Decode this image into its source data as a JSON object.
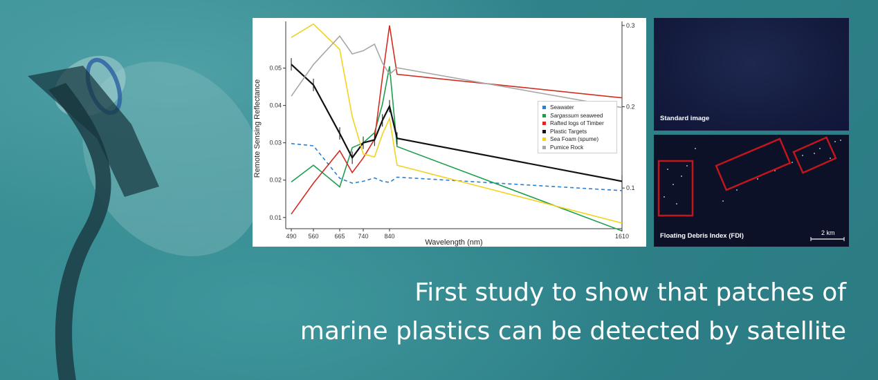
{
  "caption": {
    "line1": "First study to show that patches of",
    "line2": "marine plastics can be detected by satellite"
  },
  "satellite": {
    "top_label": "Standard image",
    "bottom_label": "Floating Debris Index (FDI)",
    "scale_label": "2 km",
    "box_color": "#c0161c"
  },
  "chart_data": {
    "type": "line",
    "xlabel": "Wavelength (nm)",
    "ylabel": "Remote Sensing Reflectance",
    "x_ticks": [
      490,
      560,
      665,
      740,
      840,
      1610
    ],
    "y_left_ticks": [
      0.01,
      0.02,
      0.03,
      0.04,
      0.05
    ],
    "y_left_tick_labels": [
      "0.01",
      "0.02",
      "0.03",
      "0.04",
      "0.05"
    ],
    "y_right_ticks": [
      0.1,
      0.2,
      0.3
    ],
    "y_right_tick_labels": [
      "0.1",
      "0.2",
      "0.3"
    ],
    "ylim_left": [
      0.007,
      0.0625
    ],
    "ylim_right": [
      0.05,
      0.305
    ],
    "legend_position": "middle-right",
    "series": [
      {
        "name": "Seawater",
        "color": "#2b7fd0",
        "dashed": true,
        "axis": "left",
        "x": [
          490,
          560,
          665,
          705,
          740,
          783,
          813,
          840,
          865,
          1610
        ],
        "y": [
          0.0298,
          0.0292,
          0.0205,
          0.0192,
          0.0197,
          0.0206,
          0.0197,
          0.0194,
          0.0208,
          0.0172
        ]
      },
      {
        "name": "Sargassum seaweed",
        "name_prefix": "",
        "name_italic": "Sargassum",
        "name_suffix": " seaweed",
        "color": "#1a9e4c",
        "dashed": false,
        "axis": "left",
        "x": [
          490,
          560,
          665,
          705,
          740,
          783,
          813,
          840,
          865,
          1610
        ],
        "y": [
          0.0195,
          0.024,
          0.0182,
          0.0287,
          0.03,
          0.0327,
          0.0403,
          0.0505,
          0.029,
          0.0064
        ]
      },
      {
        "name": "Rafted logs of Timber",
        "color": "#d42a20",
        "dashed": false,
        "axis": "right",
        "x": [
          490,
          560,
          665,
          705,
          740,
          783,
          813,
          840,
          865,
          1610
        ],
        "y": [
          0.068,
          0.106,
          0.146,
          0.119,
          0.137,
          0.16,
          0.236,
          0.3,
          0.24,
          0.211
        ]
      },
      {
        "name": "Plastic Targets",
        "color": "#111111",
        "dashed": false,
        "axis": "left",
        "x": [
          490,
          560,
          665,
          705,
          740,
          783,
          813,
          840,
          865,
          1610
        ],
        "y": [
          0.051,
          0.0455,
          0.0325,
          0.026,
          0.03,
          0.0308,
          0.036,
          0.0398,
          0.0312,
          0.0197
        ]
      },
      {
        "name": "Sea Foam (spume)",
        "color": "#f2d21b",
        "dashed": false,
        "axis": "left",
        "x": [
          490,
          560,
          665,
          705,
          740,
          783,
          813,
          840,
          865,
          1610
        ],
        "y": [
          0.0582,
          0.0618,
          0.055,
          0.037,
          0.027,
          0.0262,
          0.0323,
          0.0365,
          0.024,
          0.0085
        ]
      },
      {
        "name": "Pumice Rock",
        "color": "#a7a7a7",
        "dashed": false,
        "axis": "right",
        "x": [
          490,
          560,
          665,
          705,
          740,
          783,
          813,
          840,
          865,
          1610
        ],
        "y": [
          0.213,
          0.252,
          0.287,
          0.265,
          0.269,
          0.277,
          0.254,
          0.24,
          0.248,
          0.199
        ]
      }
    ]
  }
}
